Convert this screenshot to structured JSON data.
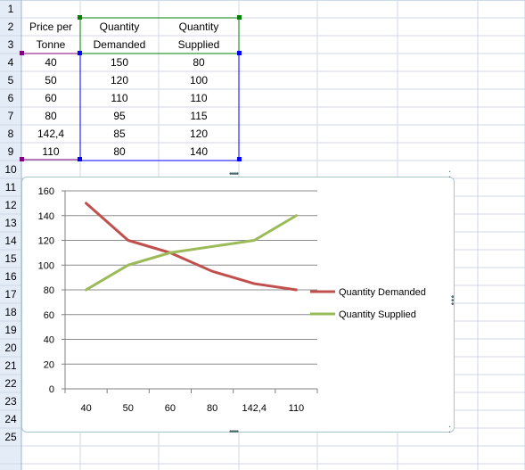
{
  "spreadsheet": {
    "row_numbers": [
      "1",
      "2",
      "3",
      "4",
      "5",
      "6",
      "7",
      "8",
      "9",
      "10",
      "11",
      "12",
      "13",
      "14",
      "15",
      "16",
      "17",
      "18",
      "19",
      "20",
      "21",
      "22",
      "23",
      "24",
      "25"
    ],
    "headers": {
      "price": [
        "Price per",
        "Tonne"
      ],
      "demanded": [
        "Quantity",
        "Demanded"
      ],
      "supplied": [
        "Quantity",
        "Supplied"
      ]
    },
    "rows": [
      {
        "price": "40",
        "demanded": "150",
        "supplied": "80"
      },
      {
        "price": "50",
        "demanded": "120",
        "supplied": "100"
      },
      {
        "price": "60",
        "demanded": "110",
        "supplied": "110"
      },
      {
        "price": "80",
        "demanded": "95",
        "supplied": "115"
      },
      {
        "price": "142,4",
        "demanded": "85",
        "supplied": "120"
      },
      {
        "price": "110",
        "demanded": "80",
        "supplied": "140"
      }
    ]
  },
  "colors": {
    "demanded": "#c0504d",
    "supplied": "#9bbb59",
    "gridline": "#8c8c8c",
    "sheet_grid": "#d0d7e5",
    "selection_green": "#008000",
    "selection_blue": "#0000ff",
    "selection_purple": "#800080"
  },
  "chart_data": {
    "type": "line",
    "categories": [
      "40",
      "50",
      "60",
      "80",
      "142,4",
      "110"
    ],
    "series": [
      {
        "name": "Quantity Demanded",
        "values": [
          150,
          120,
          110,
          95,
          85,
          80
        ]
      },
      {
        "name": "Quantity Supplied",
        "values": [
          80,
          100,
          110,
          115,
          120,
          140
        ]
      }
    ],
    "y_ticks": [
      "0",
      "20",
      "40",
      "60",
      "80",
      "100",
      "120",
      "140",
      "160"
    ],
    "ylim": [
      0,
      160
    ],
    "grid": true,
    "legend_position": "right"
  }
}
